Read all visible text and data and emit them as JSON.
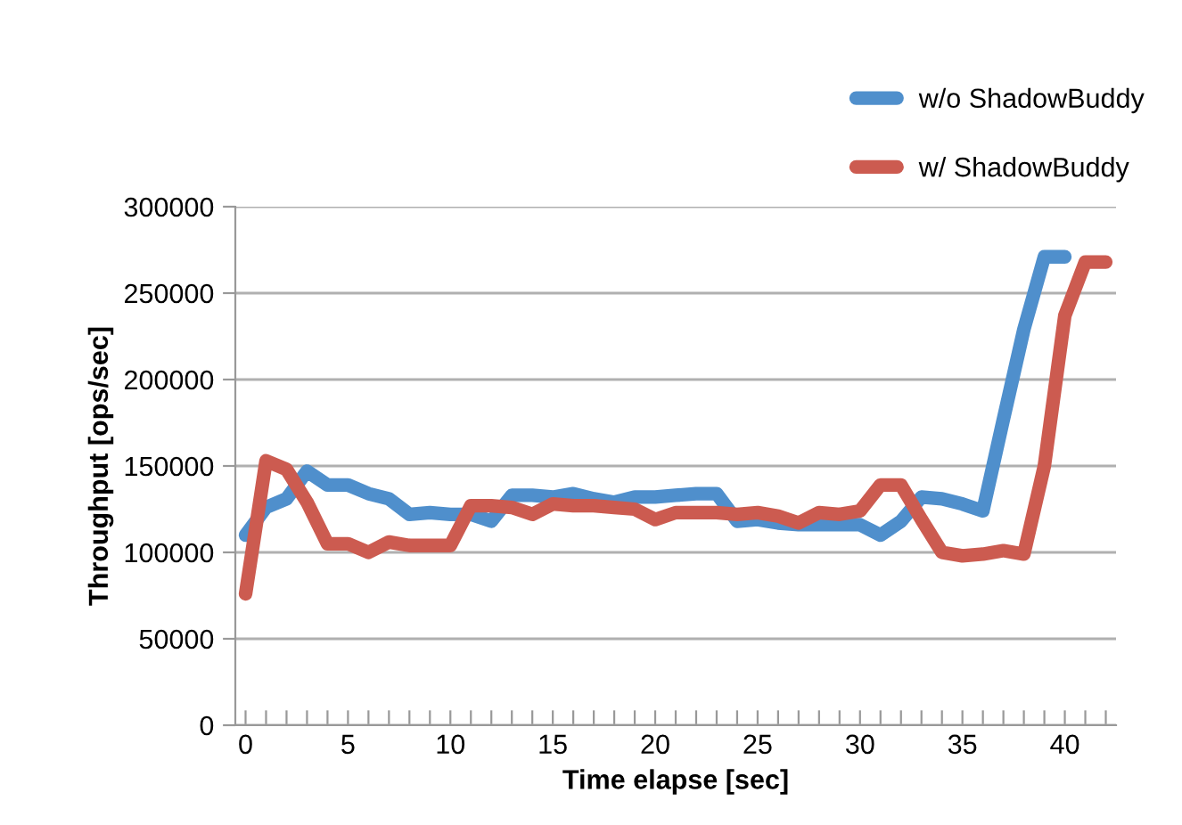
{
  "chart_data": {
    "type": "line",
    "xlabel": "Time elapse [sec]",
    "ylabel": "Throughput [ops/sec]",
    "xlim": [
      -0.5,
      42.5
    ],
    "ylim": [
      0,
      300000
    ],
    "xticks": [
      0,
      {
        "value": 1,
        "label": null
      },
      {
        "value": 2,
        "label": null
      },
      {
        "value": 3,
        "label": null
      },
      {
        "value": 4,
        "label": null
      },
      5,
      {
        "value": 6,
        "label": null
      },
      {
        "value": 7,
        "label": null
      },
      {
        "value": 8,
        "label": null
      },
      {
        "value": 9,
        "label": null
      },
      10,
      {
        "value": 11,
        "label": null
      },
      {
        "value": 12,
        "label": null
      },
      {
        "value": 13,
        "label": null
      },
      {
        "value": 14,
        "label": null
      },
      15,
      {
        "value": 16,
        "label": null
      },
      {
        "value": 17,
        "label": null
      },
      {
        "value": 18,
        "label": null
      },
      {
        "value": 19,
        "label": null
      },
      20,
      {
        "value": 21,
        "label": null
      },
      {
        "value": 22,
        "label": null
      },
      {
        "value": 23,
        "label": null
      },
      {
        "value": 24,
        "label": null
      },
      25,
      {
        "value": 26,
        "label": null
      },
      {
        "value": 27,
        "label": null
      },
      {
        "value": 28,
        "label": null
      },
      {
        "value": 29,
        "label": null
      },
      30,
      {
        "value": 31,
        "label": null
      },
      {
        "value": 32,
        "label": null
      },
      {
        "value": 33,
        "label": null
      },
      {
        "value": 34,
        "label": null
      },
      35,
      {
        "value": 36,
        "label": null
      },
      {
        "value": 37,
        "label": null
      },
      {
        "value": 38,
        "label": null
      },
      {
        "value": 39,
        "label": null
      },
      40,
      {
        "value": 41,
        "label": null
      },
      {
        "value": 42,
        "label": null
      }
    ],
    "yticks": [
      0,
      50000,
      100000,
      150000,
      200000,
      250000,
      300000
    ],
    "grid": "y",
    "legend": "top right",
    "marker": "none",
    "line_style": "solid",
    "series": [
      {
        "name": "w/o ShadowBuddy",
        "color": "#4f8fcc",
        "x": [
          0,
          1,
          2,
          3,
          4,
          5,
          6,
          7,
          8,
          9,
          10,
          11,
          12,
          13,
          14,
          15,
          16,
          17,
          18,
          19,
          20,
          21,
          22,
          23,
          24,
          25,
          26,
          27,
          28,
          29,
          30,
          31,
          32,
          33,
          34,
          35,
          36,
          37,
          38,
          39,
          40
        ],
        "values": [
          110000,
          126000,
          131000,
          147000,
          139000,
          139000,
          134000,
          131000,
          122000,
          123000,
          122000,
          122000,
          118000,
          133000,
          133000,
          132000,
          134000,
          131000,
          129000,
          132000,
          132000,
          133000,
          134000,
          134000,
          118000,
          119000,
          117000,
          116000,
          116000,
          116000,
          116000,
          110000,
          118000,
          132000,
          131000,
          128000,
          124000,
          177000,
          229000,
          271000,
          271000
        ]
      },
      {
        "name": "w/ ShadowBuddy",
        "color": "#cc5b50",
        "x": [
          0,
          1,
          2,
          3,
          4,
          5,
          6,
          7,
          8,
          9,
          10,
          11,
          12,
          13,
          14,
          15,
          16,
          17,
          18,
          19,
          20,
          21,
          22,
          23,
          24,
          25,
          26,
          27,
          28,
          29,
          30,
          31,
          32,
          33,
          34,
          35,
          36,
          37,
          38,
          39,
          40,
          41,
          42
        ],
        "values": [
          76000,
          153000,
          148000,
          129000,
          105000,
          105000,
          100000,
          106000,
          104000,
          104000,
          104000,
          127000,
          127000,
          126000,
          122000,
          128000,
          127000,
          127000,
          126000,
          125000,
          119000,
          123000,
          123000,
          123000,
          122000,
          123000,
          121000,
          117000,
          123000,
          122000,
          124000,
          139000,
          139000,
          119000,
          100000,
          98000,
          99000,
          101000,
          99000,
          150000,
          237000,
          268000,
          268000
        ]
      }
    ]
  }
}
